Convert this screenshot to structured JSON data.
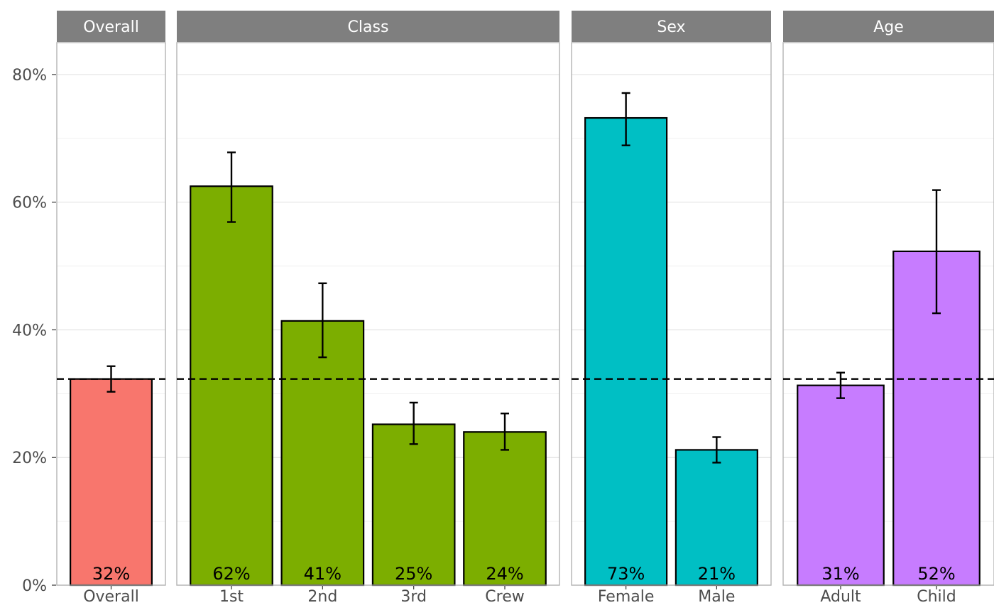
{
  "chart_data": {
    "type": "bar",
    "ylim": [
      0,
      85
    ],
    "y_ticks": [
      0,
      20,
      40,
      60,
      80
    ],
    "y_tick_labels": [
      "0%",
      "20%",
      "40%",
      "60%",
      "80%"
    ],
    "reference_line": 32.3,
    "grid": true,
    "facets": [
      {
        "name": "Overall",
        "color": "#F8766D",
        "categories": [
          "Overall"
        ],
        "values": [
          32.3
        ],
        "error_low": [
          30.3
        ],
        "error_high": [
          34.3
        ],
        "labels": [
          "32%"
        ]
      },
      {
        "name": "Class",
        "color": "#7CAE00",
        "categories": [
          "1st",
          "2nd",
          "3rd",
          "Crew"
        ],
        "values": [
          62.5,
          41.4,
          25.2,
          24.0
        ],
        "error_low": [
          56.9,
          35.7,
          22.1,
          21.2
        ],
        "error_high": [
          67.8,
          47.3,
          28.6,
          26.9
        ],
        "labels": [
          "62%",
          "41%",
          "25%",
          "24%"
        ]
      },
      {
        "name": "Sex",
        "color": "#00BFC4",
        "categories": [
          "Female",
          "Male"
        ],
        "values": [
          73.2,
          21.2
        ],
        "error_low": [
          68.9,
          19.2
        ],
        "error_high": [
          77.1,
          23.2
        ],
        "labels": [
          "73%",
          "21%"
        ]
      },
      {
        "name": "Age",
        "color": "#C77CFF",
        "categories": [
          "Adult",
          "Child"
        ],
        "values": [
          31.3,
          52.3
        ],
        "error_low": [
          29.3,
          42.6
        ],
        "error_high": [
          33.3,
          61.9
        ],
        "labels": [
          "31%",
          "52%"
        ]
      }
    ]
  }
}
